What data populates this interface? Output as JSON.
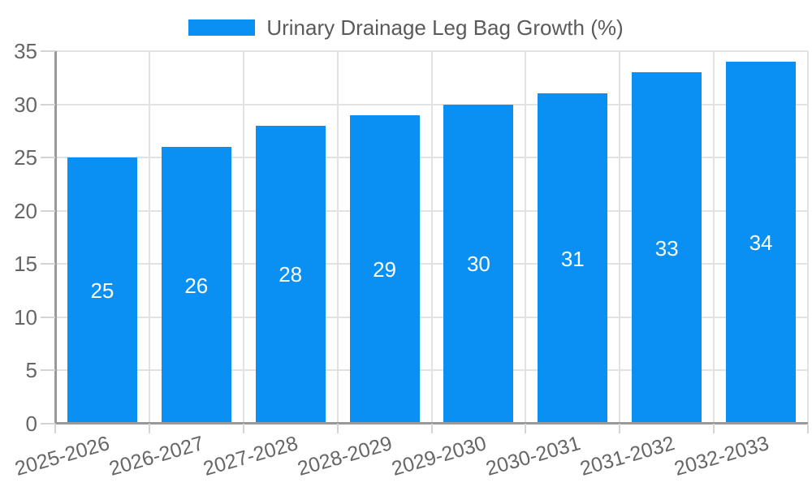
{
  "chart_data": {
    "type": "bar",
    "title": "Urinary Drainage Leg Bag Growth (%)",
    "categories": [
      "2025-2026",
      "2026-2027",
      "2027-2028",
      "2028-2029",
      "2029-2030",
      "2030-2031",
      "2031-2032",
      "2032-2033"
    ],
    "values": [
      25,
      26,
      28,
      29,
      30,
      31,
      33,
      34
    ],
    "xlabel": "",
    "ylabel": "",
    "ylim": [
      0,
      35
    ],
    "yticks": [
      0,
      5,
      10,
      15,
      20,
      25,
      30,
      35
    ],
    "grid": true,
    "legend_position": "top-center",
    "bar_labels_position": "center-inside"
  },
  "legend": {
    "label": "Urinary Drainage Leg Bag Growth (%)"
  },
  "colors": {
    "bar": "#0A8FF2",
    "bar_value_text": "#ffffff",
    "gridline": "#e2e2e2",
    "axis_line": "#999999",
    "tick": "#d4d4d4",
    "axis_label_text": "#666666",
    "legend_text": "#5a5a5a",
    "background": "#ffffff"
  }
}
